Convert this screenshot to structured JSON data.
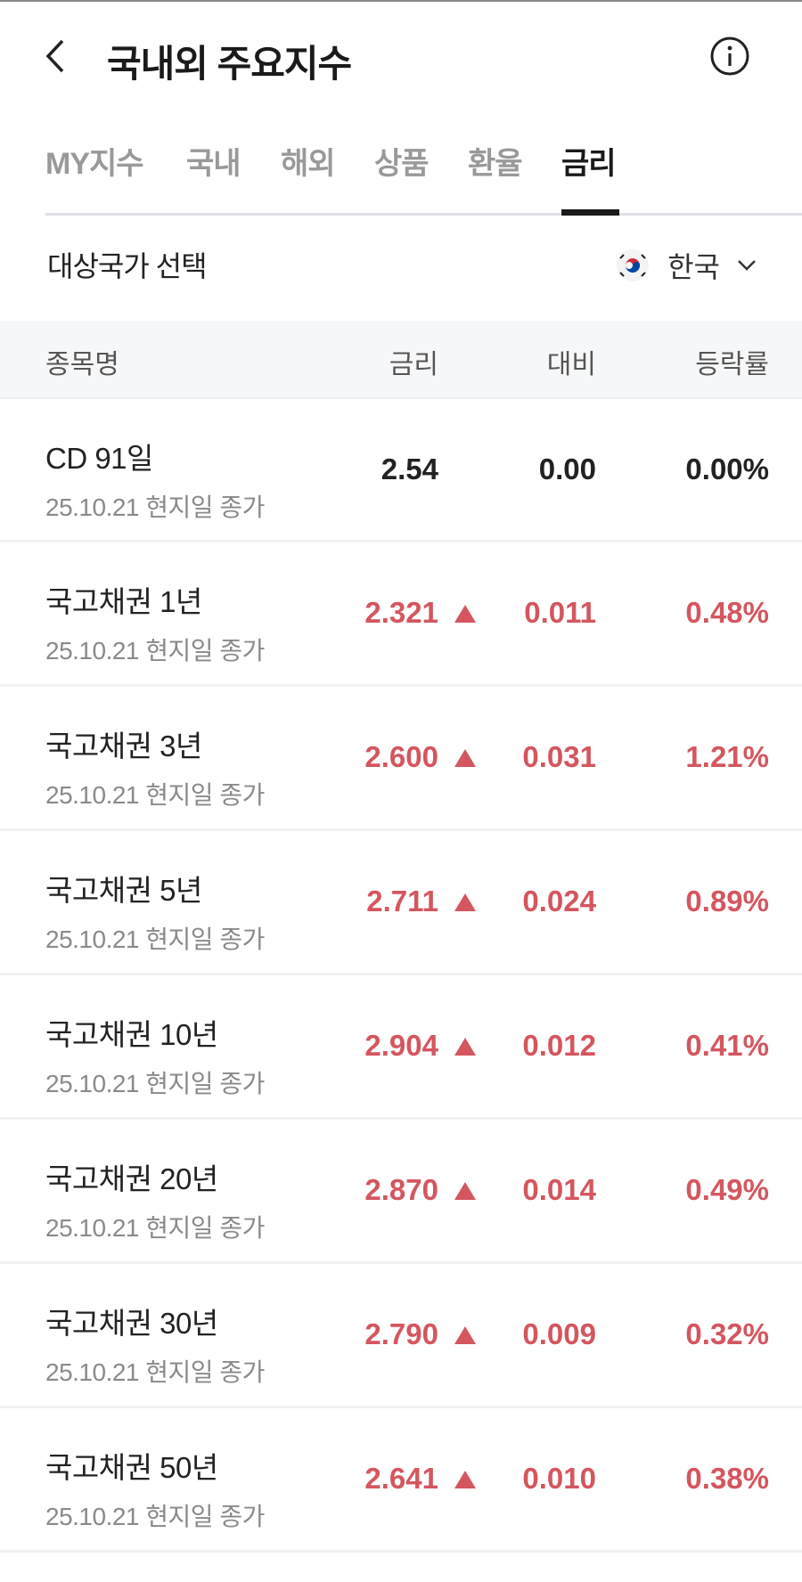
{
  "header": {
    "title": "국내외 주요지수",
    "back_icon": "chevron-left-icon",
    "info_icon": "info-circle-icon"
  },
  "tabs": [
    {
      "label": "MY지수",
      "active": false
    },
    {
      "label": "국내",
      "active": false
    },
    {
      "label": "해외",
      "active": false
    },
    {
      "label": "상품",
      "active": false
    },
    {
      "label": "환율",
      "active": false
    },
    {
      "label": "금리",
      "active": true
    }
  ],
  "country": {
    "label": "대상국가 선택",
    "selected": "한국",
    "flag_icon": "korea-flag-icon"
  },
  "table": {
    "columns": {
      "name": "종목명",
      "rate": "금리",
      "change": "대비",
      "percent": "등락률"
    },
    "rows": [
      {
        "name": "CD 91일",
        "date": "25.10.21 현지일 종가",
        "rate": "2.54",
        "change": "0.00",
        "percent": "0.00%",
        "direction": "flat"
      },
      {
        "name": "국고채권 1년",
        "date": "25.10.21 현지일 종가",
        "rate": "2.321",
        "change": "0.011",
        "percent": "0.48%",
        "direction": "up"
      },
      {
        "name": "국고채권 3년",
        "date": "25.10.21 현지일 종가",
        "rate": "2.600",
        "change": "0.031",
        "percent": "1.21%",
        "direction": "up"
      },
      {
        "name": "국고채권 5년",
        "date": "25.10.21 현지일 종가",
        "rate": "2.711",
        "change": "0.024",
        "percent": "0.89%",
        "direction": "up"
      },
      {
        "name": "국고채권 10년",
        "date": "25.10.21 현지일 종가",
        "rate": "2.904",
        "change": "0.012",
        "percent": "0.41%",
        "direction": "up"
      },
      {
        "name": "국고채권 20년",
        "date": "25.10.21 현지일 종가",
        "rate": "2.870",
        "change": "0.014",
        "percent": "0.49%",
        "direction": "up"
      },
      {
        "name": "국고채권 30년",
        "date": "25.10.21 현지일 종가",
        "rate": "2.790",
        "change": "0.009",
        "percent": "0.32%",
        "direction": "up"
      },
      {
        "name": "국고채권 50년",
        "date": "25.10.21 현지일 종가",
        "rate": "2.641",
        "change": "0.010",
        "percent": "0.38%",
        "direction": "up"
      }
    ]
  },
  "colors": {
    "up": "#d4565f",
    "flat": "#222222",
    "active_tab": "#1a1a1a",
    "inactive_tab": "#999999"
  }
}
